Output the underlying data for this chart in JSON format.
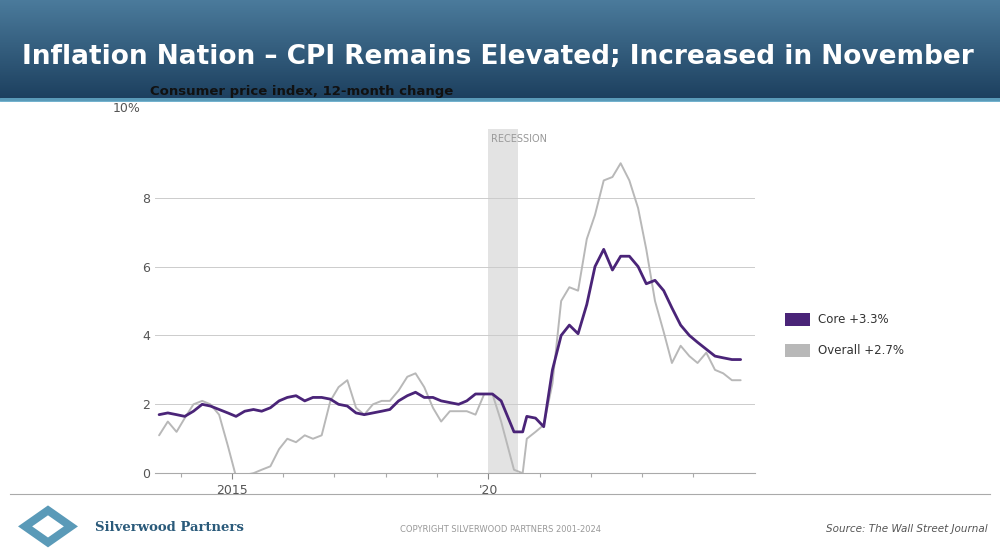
{
  "title": "Inflation Nation – CPI Remains Elevated; Increased in November",
  "subtitle": "Consumer price index, 12-month change",
  "header_bg_top": "#4a7a9b",
  "header_bg_bottom": "#1c3f5e",
  "header_accent": "#6aaac8",
  "recession_label": "RECESSION",
  "recession_x_start": 2020.0,
  "recession_x_end": 2020.58,
  "legend_core_label": "Core +3.3%",
  "legend_overall_label": "Overall +2.7%",
  "core_color": "#4a2478",
  "overall_color": "#b8b8b8",
  "ylim": [
    0,
    10
  ],
  "yticks": [
    0,
    2,
    4,
    6,
    8
  ],
  "ytick_labels": [
    "0",
    "2",
    "4",
    "6",
    "8"
  ],
  "ytop_label": "10%",
  "xlim": [
    2013.5,
    2025.2
  ],
  "footer_text": "COPYRIGHT SILVERWOOD PARTNERS 2001-2024",
  "source_text": "Source: The Wall Street Journal",
  "company_name": "Silverwood Partners",
  "core_data": [
    [
      2013.58,
      1.7
    ],
    [
      2013.75,
      1.75
    ],
    [
      2013.92,
      1.7
    ],
    [
      2014.08,
      1.65
    ],
    [
      2014.25,
      1.8
    ],
    [
      2014.42,
      2.0
    ],
    [
      2014.58,
      1.95
    ],
    [
      2014.75,
      1.85
    ],
    [
      2014.92,
      1.75
    ],
    [
      2015.08,
      1.65
    ],
    [
      2015.25,
      1.8
    ],
    [
      2015.42,
      1.85
    ],
    [
      2015.58,
      1.8
    ],
    [
      2015.75,
      1.9
    ],
    [
      2015.92,
      2.1
    ],
    [
      2016.08,
      2.2
    ],
    [
      2016.25,
      2.25
    ],
    [
      2016.42,
      2.1
    ],
    [
      2016.58,
      2.2
    ],
    [
      2016.75,
      2.2
    ],
    [
      2016.92,
      2.15
    ],
    [
      2017.08,
      2.0
    ],
    [
      2017.25,
      1.95
    ],
    [
      2017.42,
      1.75
    ],
    [
      2017.58,
      1.7
    ],
    [
      2017.75,
      1.75
    ],
    [
      2017.92,
      1.8
    ],
    [
      2018.08,
      1.85
    ],
    [
      2018.25,
      2.1
    ],
    [
      2018.42,
      2.25
    ],
    [
      2018.58,
      2.35
    ],
    [
      2018.75,
      2.2
    ],
    [
      2018.92,
      2.2
    ],
    [
      2019.08,
      2.1
    ],
    [
      2019.25,
      2.05
    ],
    [
      2019.42,
      2.0
    ],
    [
      2019.58,
      2.1
    ],
    [
      2019.75,
      2.3
    ],
    [
      2019.92,
      2.3
    ],
    [
      2020.08,
      2.3
    ],
    [
      2020.25,
      2.1
    ],
    [
      2020.5,
      1.2
    ],
    [
      2020.67,
      1.2
    ],
    [
      2020.75,
      1.65
    ],
    [
      2020.92,
      1.6
    ],
    [
      2021.08,
      1.35
    ],
    [
      2021.25,
      3.0
    ],
    [
      2021.42,
      4.0
    ],
    [
      2021.58,
      4.3
    ],
    [
      2021.75,
      4.05
    ],
    [
      2021.92,
      4.9
    ],
    [
      2022.08,
      6.0
    ],
    [
      2022.25,
      6.5
    ],
    [
      2022.42,
      5.9
    ],
    [
      2022.58,
      6.3
    ],
    [
      2022.75,
      6.3
    ],
    [
      2022.92,
      6.0
    ],
    [
      2023.08,
      5.5
    ],
    [
      2023.25,
      5.6
    ],
    [
      2023.42,
      5.3
    ],
    [
      2023.58,
      4.8
    ],
    [
      2023.75,
      4.3
    ],
    [
      2023.92,
      4.0
    ],
    [
      2024.08,
      3.8
    ],
    [
      2024.25,
      3.6
    ],
    [
      2024.42,
      3.4
    ],
    [
      2024.58,
      3.35
    ],
    [
      2024.75,
      3.3
    ],
    [
      2024.92,
      3.3
    ]
  ],
  "overall_data": [
    [
      2013.58,
      1.1
    ],
    [
      2013.75,
      1.5
    ],
    [
      2013.92,
      1.2
    ],
    [
      2014.08,
      1.6
    ],
    [
      2014.25,
      2.0
    ],
    [
      2014.42,
      2.1
    ],
    [
      2014.58,
      2.0
    ],
    [
      2014.75,
      1.7
    ],
    [
      2014.92,
      0.8
    ],
    [
      2015.08,
      -0.1
    ],
    [
      2015.25,
      -0.05
    ],
    [
      2015.42,
      0.0
    ],
    [
      2015.58,
      0.1
    ],
    [
      2015.75,
      0.2
    ],
    [
      2015.92,
      0.7
    ],
    [
      2016.08,
      1.0
    ],
    [
      2016.25,
      0.9
    ],
    [
      2016.42,
      1.1
    ],
    [
      2016.58,
      1.0
    ],
    [
      2016.75,
      1.1
    ],
    [
      2016.92,
      2.1
    ],
    [
      2017.08,
      2.5
    ],
    [
      2017.25,
      2.7
    ],
    [
      2017.42,
      1.9
    ],
    [
      2017.58,
      1.7
    ],
    [
      2017.75,
      2.0
    ],
    [
      2017.92,
      2.1
    ],
    [
      2018.08,
      2.1
    ],
    [
      2018.25,
      2.4
    ],
    [
      2018.42,
      2.8
    ],
    [
      2018.58,
      2.9
    ],
    [
      2018.75,
      2.5
    ],
    [
      2018.92,
      1.9
    ],
    [
      2019.08,
      1.5
    ],
    [
      2019.25,
      1.8
    ],
    [
      2019.42,
      1.8
    ],
    [
      2019.58,
      1.8
    ],
    [
      2019.75,
      1.7
    ],
    [
      2019.92,
      2.3
    ],
    [
      2020.08,
      2.3
    ],
    [
      2020.25,
      1.5
    ],
    [
      2020.5,
      0.1
    ],
    [
      2020.67,
      0.0
    ],
    [
      2020.75,
      1.0
    ],
    [
      2020.92,
      1.2
    ],
    [
      2021.08,
      1.4
    ],
    [
      2021.25,
      2.6
    ],
    [
      2021.42,
      5.0
    ],
    [
      2021.58,
      5.4
    ],
    [
      2021.75,
      5.3
    ],
    [
      2021.92,
      6.8
    ],
    [
      2022.08,
      7.5
    ],
    [
      2022.25,
      8.5
    ],
    [
      2022.42,
      8.6
    ],
    [
      2022.58,
      9.0
    ],
    [
      2022.75,
      8.5
    ],
    [
      2022.92,
      7.7
    ],
    [
      2023.08,
      6.5
    ],
    [
      2023.25,
      5.0
    ],
    [
      2023.42,
      4.1
    ],
    [
      2023.58,
      3.2
    ],
    [
      2023.75,
      3.7
    ],
    [
      2023.92,
      3.4
    ],
    [
      2024.08,
      3.2
    ],
    [
      2024.25,
      3.5
    ],
    [
      2024.42,
      3.0
    ],
    [
      2024.58,
      2.9
    ],
    [
      2024.75,
      2.7
    ],
    [
      2024.92,
      2.7
    ]
  ]
}
